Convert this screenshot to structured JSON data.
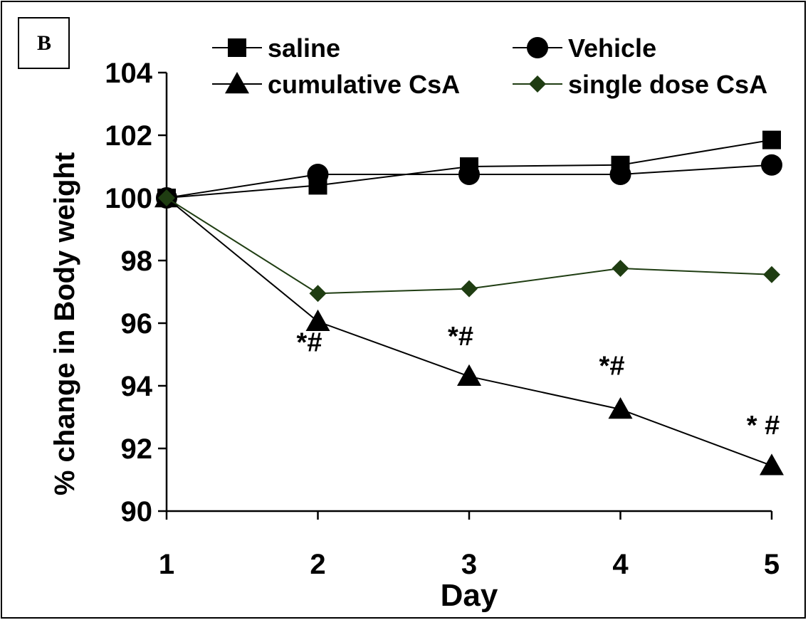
{
  "panel_label": "B",
  "chart_data": {
    "type": "line",
    "title": "",
    "xlabel": "Day",
    "ylabel": "% change in Body weight",
    "x": [
      1,
      2,
      3,
      4,
      5
    ],
    "xticks": [
      "1",
      "2",
      "3",
      "4",
      "5"
    ],
    "ylim": [
      90,
      104
    ],
    "yticks": [
      "90",
      "92",
      "94",
      "96",
      "98",
      "100",
      "102",
      "104"
    ],
    "grid": false,
    "legend_position": "top",
    "series": [
      {
        "name": "saline",
        "marker": "square",
        "color": "#000000",
        "values": [
          100.0,
          100.4,
          101.0,
          101.05,
          101.85
        ]
      },
      {
        "name": "Vehicle",
        "marker": "circle",
        "color": "#000000",
        "values": [
          100.0,
          100.75,
          100.75,
          100.75,
          101.05
        ]
      },
      {
        "name": "cumulative CsA",
        "marker": "triangle",
        "color": "#000000",
        "values": [
          100.0,
          96.05,
          94.3,
          93.25,
          91.45
        ]
      },
      {
        "name": "single dose CsA",
        "marker": "diamond",
        "color": "#1f3d12",
        "values": [
          100.0,
          96.95,
          97.1,
          97.75,
          97.55
        ]
      }
    ],
    "annotations": [
      {
        "text": "*#",
        "x": 2,
        "y": 95.1
      },
      {
        "text": "*#",
        "x": 3,
        "y": 95.3
      },
      {
        "text": "*#",
        "x": 4,
        "y": 94.35
      },
      {
        "text": "* #",
        "x": 5,
        "y": 92.45
      }
    ]
  }
}
